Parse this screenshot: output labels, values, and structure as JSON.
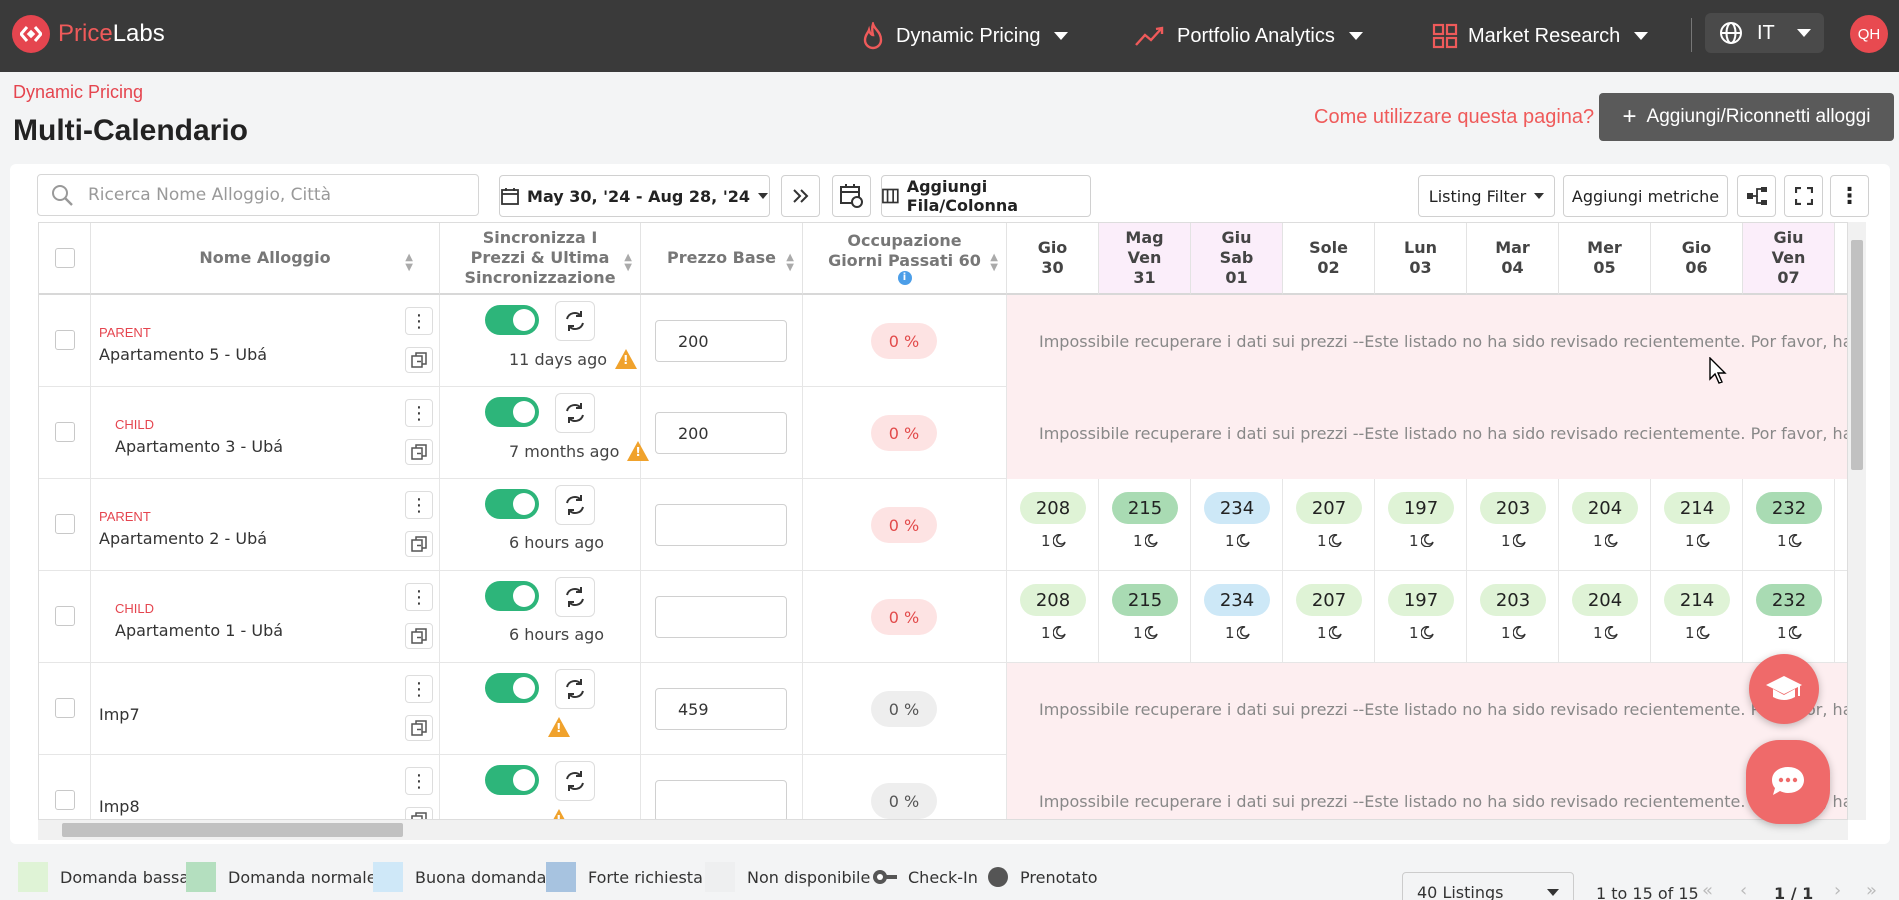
{
  "app": {
    "logo_part1": "Price",
    "logo_part2": "Labs"
  },
  "nav": {
    "items": [
      {
        "label": "Dynamic Pricing",
        "icon": "fire-icon"
      },
      {
        "label": "Portfolio Analytics",
        "icon": "chart-line-icon"
      },
      {
        "label": "Market Research",
        "icon": "grid-icon"
      }
    ],
    "language": "IT",
    "avatar": "QH"
  },
  "page": {
    "breadcrumb": "Dynamic Pricing",
    "title": "Multi-Calendario",
    "help_link": "Come utilizzare questa pagina?",
    "add_button": "Aggiungi/Riconnetti alloggi"
  },
  "toolbar": {
    "search_placeholder": "Ricerca Nome Alloggio, Città",
    "date_range": "May 30, '24 - Aug 28, '24",
    "add_row_col": "Aggiungi Fila/Colonna",
    "listing_filter": "Listing Filter",
    "add_metrics": "Aggiungi metriche"
  },
  "columns": {
    "name": "Nome Alloggio",
    "sync": "Sincronizza I Prezzi & Ultima Sincronizzazione",
    "base": "Prezzo Base",
    "occupancy": "Occupazione Giorni Passati 60"
  },
  "dates": [
    {
      "label": "Gio\n30",
      "weekend": false
    },
    {
      "label": "Mag\nVen\n31",
      "weekend": true
    },
    {
      "label": "Giu\nSab\n01",
      "weekend": true
    },
    {
      "label": "Sole\n02",
      "weekend": false
    },
    {
      "label": "Lun\n03",
      "weekend": false
    },
    {
      "label": "Mar\n04",
      "weekend": false
    },
    {
      "label": "Mer\n05",
      "weekend": false
    },
    {
      "label": "Gio\n06",
      "weekend": false
    },
    {
      "label": "Giu\nVen\n07",
      "weekend": true
    }
  ],
  "error_text": "Impossibile recuperare i dati sui prezzi --Este listado no ha sido revisado recientemente. Por favor, haz click en",
  "rows": [
    {
      "tag": "PARENT",
      "name": "Apartamento 5 - Ubá",
      "sync": "11 days ago",
      "warn": true,
      "base": "200",
      "occupancy": "0 %",
      "occ_style": "red",
      "error": true
    },
    {
      "tag": "CHILD",
      "name": "Apartamento 3 - Ubá",
      "sync": "7 months ago",
      "warn": true,
      "base": "200",
      "occupancy": "0 %",
      "occ_style": "red",
      "error": true
    },
    {
      "tag": "PARENT",
      "name": "Apartamento 2 - Ubá",
      "sync": "6 hours ago",
      "warn": false,
      "base": "",
      "occupancy": "0 %",
      "occ_style": "red",
      "error": false
    },
    {
      "tag": "CHILD",
      "name": "Apartamento 1 - Ubá",
      "sync": "6 hours ago",
      "warn": false,
      "base": "",
      "occupancy": "0 %",
      "occ_style": "red",
      "error": false
    },
    {
      "tag": "",
      "name": "Imp7",
      "sync": "",
      "warn": true,
      "base": "459",
      "occupancy": "0 %",
      "occ_style": "grey",
      "error": true
    },
    {
      "tag": "",
      "name": "Imp8",
      "sync": "",
      "warn": true,
      "base": "",
      "occupancy": "0 %",
      "occ_style": "grey",
      "error": true
    }
  ],
  "prices": [
    {
      "value": "208",
      "level": "low"
    },
    {
      "value": "215",
      "level": "norm"
    },
    {
      "value": "234",
      "level": "good"
    },
    {
      "value": "207",
      "level": "low"
    },
    {
      "value": "197",
      "level": "low"
    },
    {
      "value": "203",
      "level": "low"
    },
    {
      "value": "204",
      "level": "low"
    },
    {
      "value": "214",
      "level": "low"
    },
    {
      "value": "232",
      "level": "norm"
    }
  ],
  "min_stay": "1",
  "legend": [
    {
      "label": "Domanda bassa",
      "color": "#dff3d6"
    },
    {
      "label": "Domanda normale",
      "color": "#b4dfbf"
    },
    {
      "label": "Buona domanda",
      "color": "#cfe8f8"
    },
    {
      "label": "Forte richiesta",
      "color": "#a7c3e0"
    },
    {
      "label": "Non disponibile",
      "color": "#eeeff0"
    },
    {
      "label": "Check-In",
      "icon": "key-icon"
    },
    {
      "label": "Prenotato",
      "icon": "dot-icon"
    }
  ],
  "footer": {
    "per_page": "40 Listings",
    "range": "1 to 15 of 15",
    "page": "1 / 1"
  }
}
